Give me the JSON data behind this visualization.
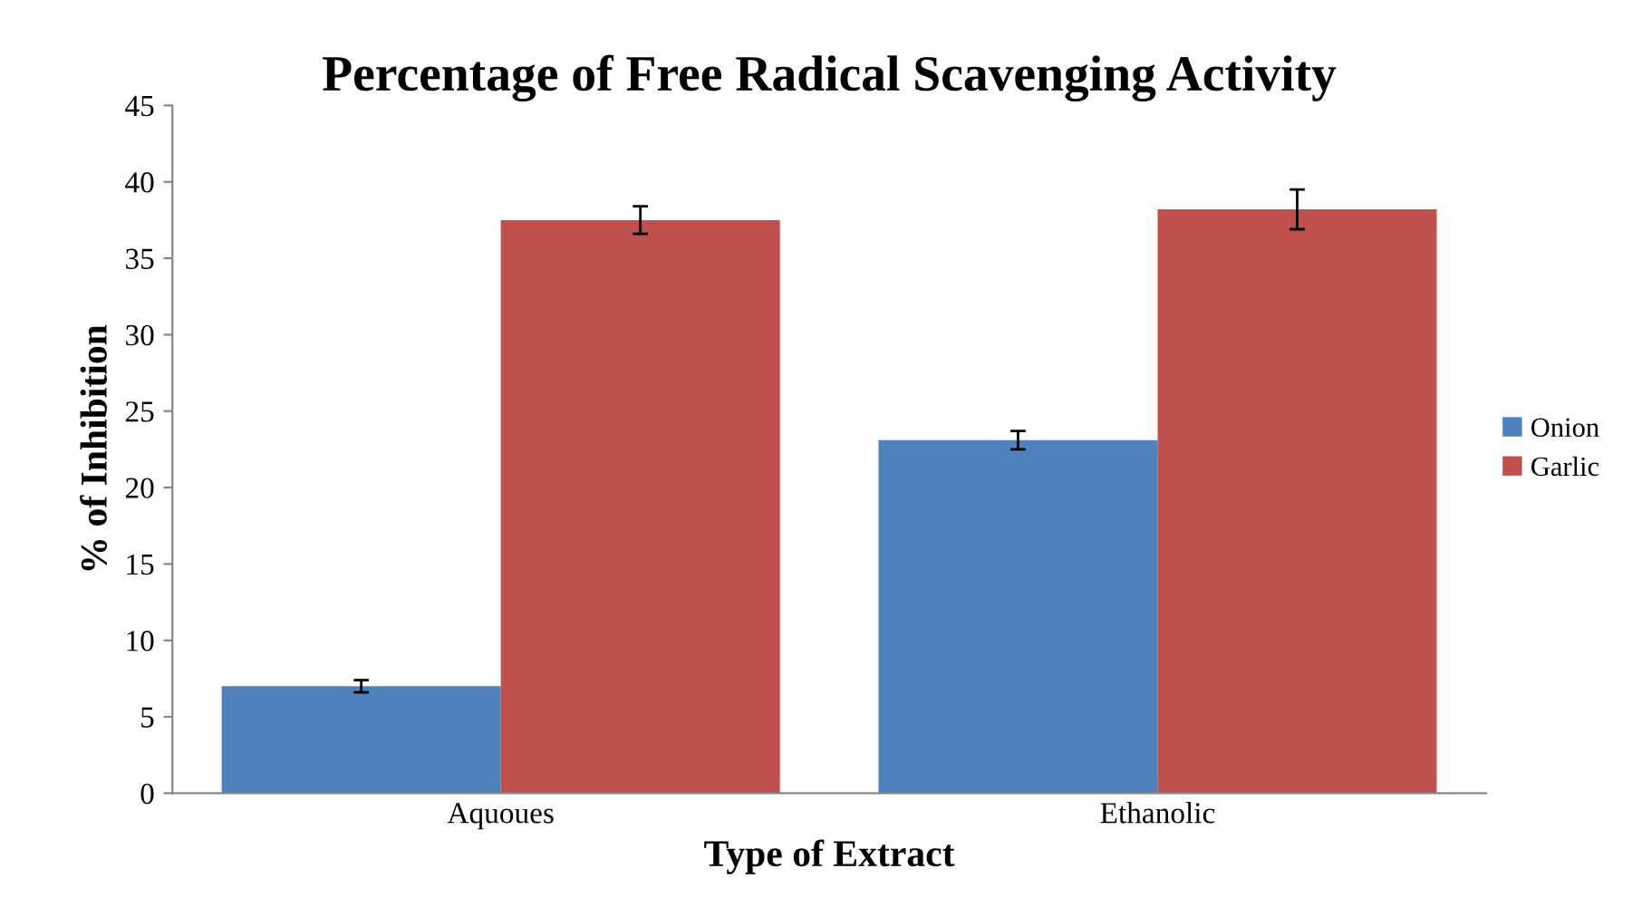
{
  "chart_data": {
    "type": "bar",
    "title": "Percentage of Free Radical Scavenging Activity",
    "xlabel": "Type of Extract",
    "ylabel": "% of Inhibition",
    "categories": [
      "Aquoues",
      "Ethanolic"
    ],
    "series": [
      {
        "name": "Onion",
        "color": "#4f81bd",
        "values": [
          7.0,
          23.1
        ],
        "errors": [
          0.4,
          0.6
        ]
      },
      {
        "name": "Garlic",
        "color": "#c0504d",
        "values": [
          37.5,
          38.2
        ],
        "errors": [
          0.9,
          1.3
        ]
      }
    ],
    "ylim": [
      0,
      45
    ],
    "yticks": [
      0,
      5,
      10,
      15,
      20,
      25,
      30,
      35,
      40,
      45
    ],
    "grid": false,
    "legend": "right"
  }
}
